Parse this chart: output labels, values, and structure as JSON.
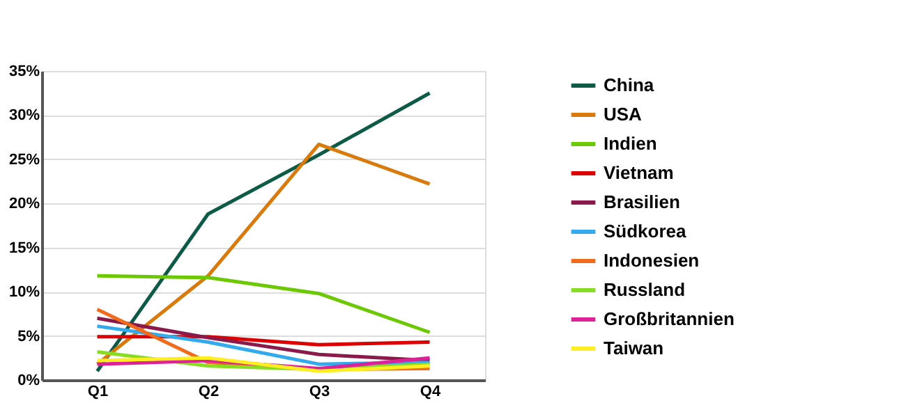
{
  "chart_data": {
    "type": "line",
    "categories": [
      "Q1",
      "Q2",
      "Q3",
      "Q4"
    ],
    "series": [
      {
        "name": "China",
        "color": "#0d5a47",
        "values": [
          1.0,
          18.8,
          25.5,
          32.5
        ]
      },
      {
        "name": "USA",
        "color": "#d97a0c",
        "values": [
          1.8,
          11.8,
          26.7,
          22.2
        ]
      },
      {
        "name": "Indien",
        "color": "#6cc800",
        "values": [
          11.8,
          11.6,
          9.8,
          5.4
        ]
      },
      {
        "name": "Vietnam",
        "color": "#dd0000",
        "values": [
          4.9,
          4.9,
          4.0,
          4.3
        ]
      },
      {
        "name": "Brasilien",
        "color": "#8b1a4a",
        "values": [
          7.0,
          4.8,
          2.9,
          2.2
        ]
      },
      {
        "name": "Südkorea",
        "color": "#33aaee",
        "values": [
          6.1,
          4.3,
          1.8,
          2.0
        ]
      },
      {
        "name": "Indonesien",
        "color": "#f26a1b",
        "values": [
          8.0,
          2.0,
          1.2,
          1.3
        ]
      },
      {
        "name": "Russland",
        "color": "#88dd22",
        "values": [
          3.2,
          1.6,
          1.2,
          1.8
        ]
      },
      {
        "name": "Großbritannien",
        "color": "#dd2299",
        "values": [
          1.8,
          2.2,
          1.3,
          2.5
        ]
      },
      {
        "name": "Taiwan",
        "color": "#ffee22",
        "values": [
          2.2,
          2.5,
          1.0,
          1.6
        ]
      }
    ],
    "ylim": [
      0,
      35
    ],
    "yticks": [
      {
        "value": 0,
        "label": "0%"
      },
      {
        "value": 5,
        "label": "5%"
      },
      {
        "value": 10,
        "label": "10%"
      },
      {
        "value": 15,
        "label": "15%"
      },
      {
        "value": 20,
        "label": "20%"
      },
      {
        "value": 25,
        "label": "25%"
      },
      {
        "value": 30,
        "label": "30%"
      },
      {
        "value": 35,
        "label": "35%"
      }
    ],
    "grid": "y",
    "legend": "right",
    "marker": "none",
    "line_style": "solid"
  }
}
